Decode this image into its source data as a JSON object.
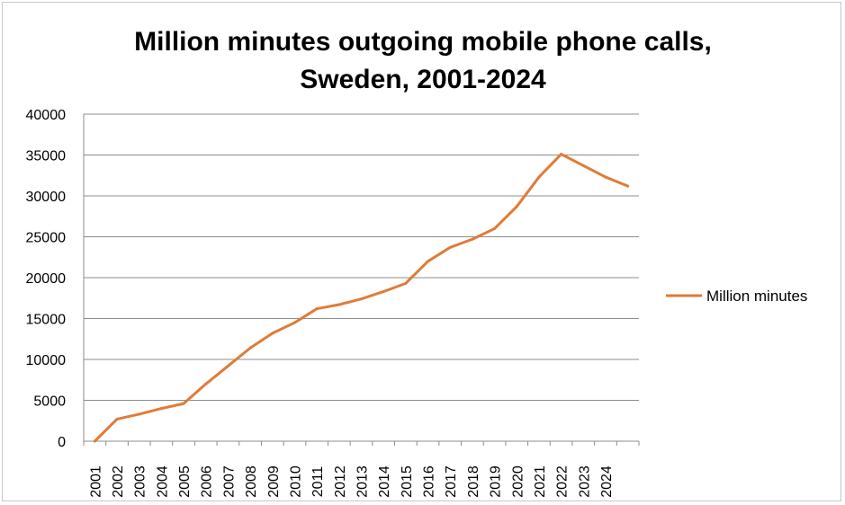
{
  "chart_data": {
    "type": "line",
    "title_lines": [
      "Million minutes outgoing mobile phone calls,",
      "Sweden, 2001-2024"
    ],
    "categories": [
      "2001",
      "2002",
      "2003",
      "2004",
      "2005",
      "2006",
      "2007",
      "2008",
      "2009",
      "2010",
      "2011",
      "2012",
      "2013",
      "2014",
      "2015",
      "2016",
      "2017",
      "2018",
      "2019",
      "2020",
      "2021",
      "2022",
      "2023",
      "2024",
      ""
    ],
    "series": [
      {
        "name": "Million minutes",
        "color": "#e07b39",
        "values": [
          0,
          2700,
          3300,
          4000,
          4600,
          7000,
          9200,
          11400,
          13200,
          14500,
          16200,
          16700,
          17400,
          18300,
          19300,
          22000,
          23700,
          24700,
          26000,
          28700,
          32300,
          35100,
          33700,
          32300,
          31200
        ]
      }
    ],
    "yticks": [
      "0",
      "5000",
      "10000",
      "15000",
      "20000",
      "25000",
      "30000",
      "35000",
      "40000"
    ],
    "ylim": [
      0,
      40000
    ],
    "xlabel": "",
    "ylabel": "",
    "grid": true,
    "legend": "right"
  }
}
